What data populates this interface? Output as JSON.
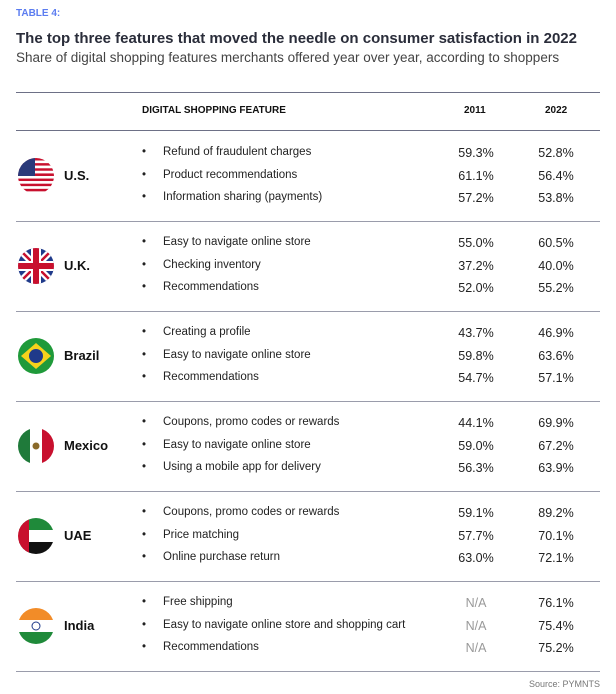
{
  "label": "TABLE 4:",
  "title": "The top three features that moved the needle on consumer satisfaction in 2022",
  "subtitle": "Share of digital shopping features merchants offered year over year, according to shoppers",
  "source": "Source: PYMNTS",
  "chart_data": {
    "type": "table",
    "columns": [
      "DIGITAL SHOPPING FEATURE",
      "2011",
      "2022"
    ],
    "bullet": "•",
    "groups": [
      {
        "country": "U.S.",
        "flag": "us-flag",
        "rows": [
          [
            "Refund of fraudulent charges",
            "59.3%",
            "52.8%"
          ],
          [
            "Product recommendations",
            "61.1%",
            "56.4%"
          ],
          [
            "Information sharing (payments)",
            "57.2%",
            "53.8%"
          ]
        ]
      },
      {
        "country": "U.K.",
        "flag": "uk-flag",
        "rows": [
          [
            "Easy to navigate online store",
            "55.0%",
            "60.5%"
          ],
          [
            "Checking inventory",
            "37.2%",
            "40.0%"
          ],
          [
            "Recommendations",
            "52.0%",
            "55.2%"
          ]
        ]
      },
      {
        "country": "Brazil",
        "flag": "brazil-flag",
        "rows": [
          [
            "Creating a profile",
            "43.7%",
            "46.9%"
          ],
          [
            "Easy to navigate online store",
            "59.8%",
            "63.6%"
          ],
          [
            "Recommendations",
            "54.7%",
            "57.1%"
          ]
        ]
      },
      {
        "country": "Mexico",
        "flag": "mexico-flag",
        "rows": [
          [
            "Coupons, promo codes or rewards",
            "44.1%",
            "69.9%"
          ],
          [
            "Easy to navigate online store",
            "59.0%",
            "67.2%"
          ],
          [
            "Using a mobile app for delivery",
            "56.3%",
            "63.9%"
          ]
        ]
      },
      {
        "country": "UAE",
        "flag": "uae-flag",
        "rows": [
          [
            "Coupons, promo codes or rewards",
            "59.1%",
            "89.2%"
          ],
          [
            "Price matching",
            "57.7%",
            "70.1%"
          ],
          [
            "Online purchase return",
            "63.0%",
            "72.1%"
          ]
        ]
      },
      {
        "country": "India",
        "flag": "india-flag",
        "rows": [
          [
            "Free shipping",
            "N/A",
            "76.1%"
          ],
          [
            "Easy to navigate online store and shopping cart",
            "N/A",
            "75.4%"
          ],
          [
            "Recommendations",
            "N/A",
            "75.2%"
          ]
        ]
      }
    ]
  }
}
